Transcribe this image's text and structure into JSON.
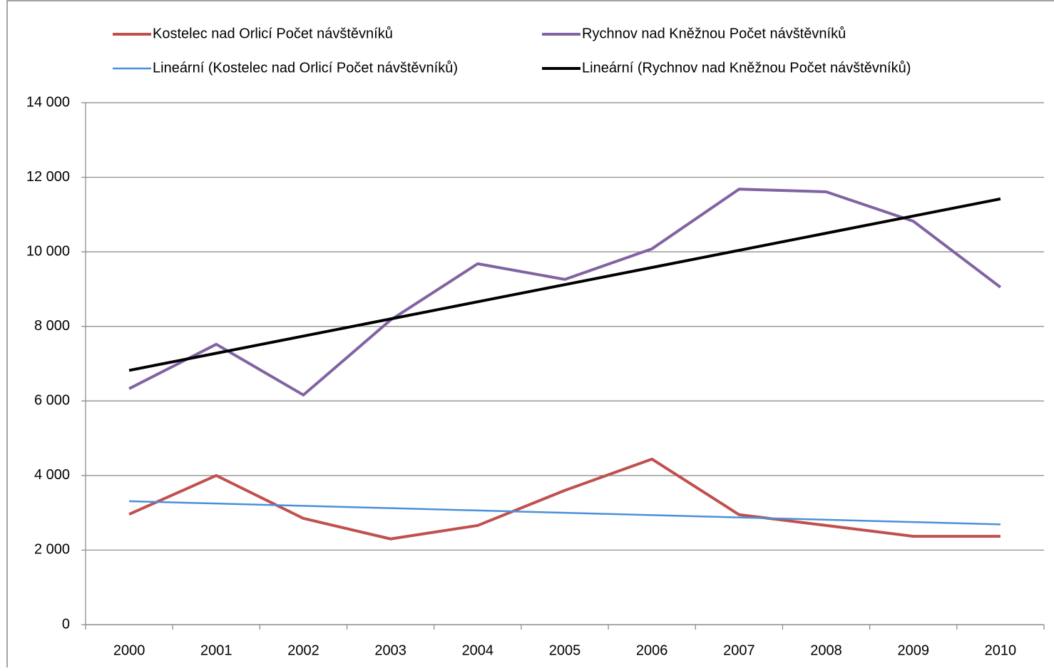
{
  "chart_data": {
    "type": "line",
    "categories": [
      "2000",
      "2001",
      "2002",
      "2003",
      "2004",
      "2005",
      "2006",
      "2007",
      "2008",
      "2009",
      "2010"
    ],
    "series": [
      {
        "name": "Kostelec nad Orlicí Počet návštěvníků",
        "color": "#c0504d",
        "width": 4,
        "values": [
          2960,
          4000,
          2850,
          2300,
          2660,
          3600,
          4440,
          2950,
          2660,
          2370,
          2370
        ]
      },
      {
        "name": "Rychnov nad Kněžnou Počet návštěvníků",
        "color": "#8064a2",
        "width": 4,
        "values": [
          6330,
          7520,
          6160,
          8170,
          9680,
          9260,
          10080,
          11680,
          11610,
          10820,
          9050
        ]
      },
      {
        "name": "Lineární (Kostelec nad Orlicí Počet návštěvníků)",
        "color": "#4a90d9",
        "width": 2.5,
        "values": [
          3310,
          3248,
          3186,
          3124,
          3062,
          3000,
          2938,
          2876,
          2814,
          2752,
          2690
        ]
      },
      {
        "name": "Lineární (Rychnov nad  Kněžnou Počet návštěvníků)",
        "color": "#000000",
        "width": 4,
        "values": [
          6820,
          7280,
          7740,
          8200,
          8660,
          9120,
          9580,
          10040,
          10500,
          10960,
          11420
        ]
      }
    ],
    "ylim": [
      0,
      14000
    ],
    "yticks": [
      0,
      {
        "value": 2000,
        "label": "2 000"
      },
      {
        "value": 4000,
        "label": "4 000"
      },
      {
        "value": 6000,
        "label": "6 000"
      },
      {
        "value": 8000,
        "label": "8 000"
      },
      {
        "value": 10000,
        "label": "10 000"
      },
      {
        "value": 12000,
        "label": "12 000"
      },
      {
        "value": 14000,
        "label": "14 000"
      }
    ],
    "grid": true,
    "legend": "top"
  }
}
